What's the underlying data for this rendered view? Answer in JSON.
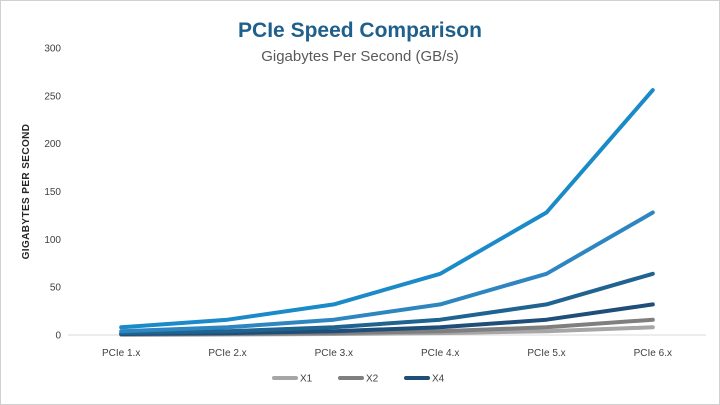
{
  "chart_data": {
    "type": "line",
    "title": "PCIe Speed Comparison",
    "subtitle": "Gigabytes Per Second (GB/s)",
    "xlabel": "",
    "ylabel": "GIGABYTES PER SECOND",
    "ylim": [
      0,
      300
    ],
    "yticks": [
      0,
      50,
      100,
      150,
      200,
      250,
      300
    ],
    "grid": false,
    "legend_position": "bottom",
    "categories": [
      "PCIe 1.x",
      "PCIe 2.x",
      "PCIe 3.x",
      "PCIe 4.x",
      "PCIe 5.x",
      "PCIe 6.x"
    ],
    "series": [
      {
        "name": "X1",
        "color": "#a6a6a6",
        "values": [
          0.25,
          0.5,
          1,
          2,
          4,
          8
        ],
        "in_legend": true
      },
      {
        "name": "X2",
        "color": "#7f7f7f",
        "values": [
          0.5,
          1,
          2,
          4,
          8,
          16
        ],
        "in_legend": true
      },
      {
        "name": "X4",
        "color": "#1f4e79",
        "values": [
          1,
          2,
          4,
          8,
          16,
          32
        ],
        "in_legend": true
      },
      {
        "name": "",
        "color": "#1f6391",
        "values": [
          2,
          4,
          8,
          16,
          32,
          64
        ],
        "in_legend": false
      },
      {
        "name": "",
        "color": "#2e86c1",
        "values": [
          4,
          8,
          16,
          32,
          64,
          128
        ],
        "in_legend": false
      },
      {
        "name": "",
        "color": "#1a8ac8",
        "values": [
          8,
          16,
          32,
          64,
          128,
          256
        ],
        "in_legend": false
      }
    ]
  }
}
